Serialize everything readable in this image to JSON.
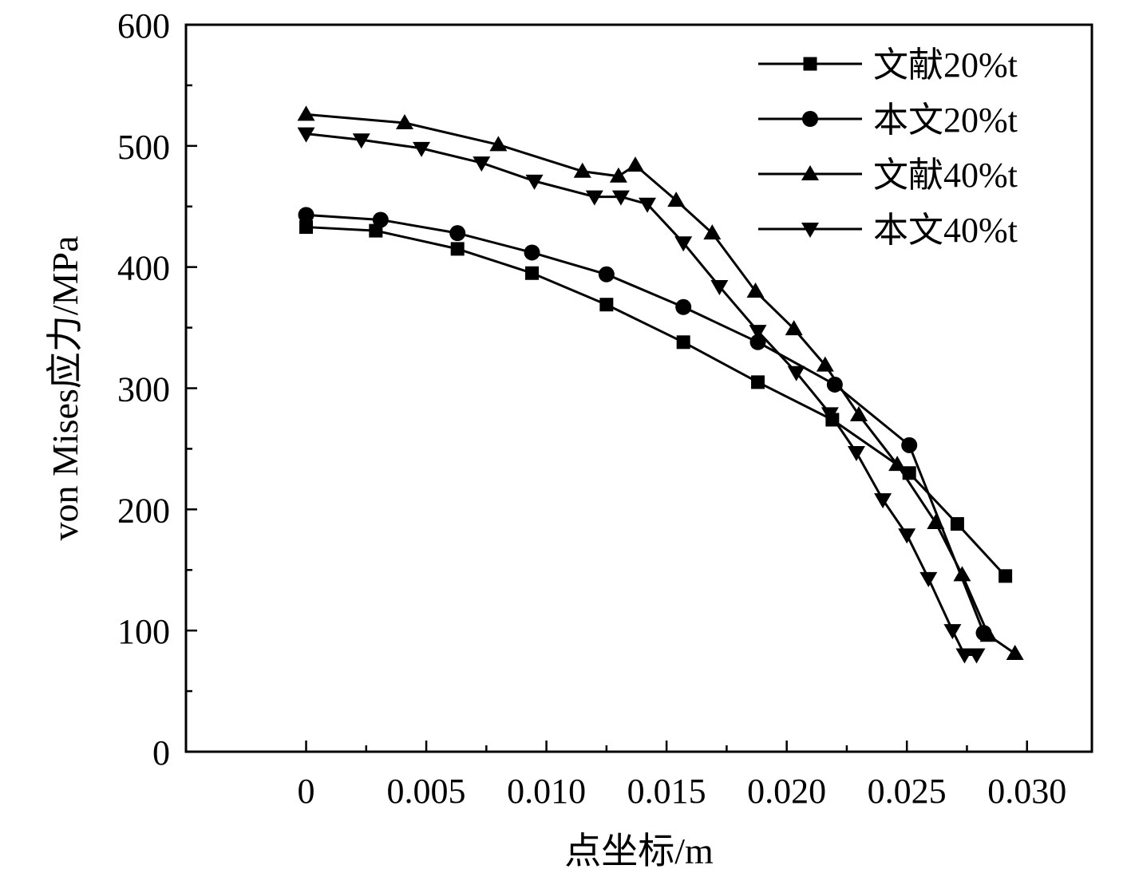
{
  "chart_data": {
    "type": "line",
    "xlabel": "点坐标/m",
    "ylabel": "von Mises应力/MPa",
    "xlim": [
      -0.005,
      0.0327
    ],
    "ylim": [
      0,
      600
    ],
    "x_ticks": [
      0,
      0.005,
      0.01,
      0.015,
      0.02,
      0.025,
      0.03
    ],
    "x_tick_labels": [
      "0",
      "0.005",
      "0.010",
      "0.015",
      "0.020",
      "0.025",
      "0.030"
    ],
    "y_ticks": [
      0,
      100,
      200,
      300,
      400,
      500,
      600
    ],
    "y_tick_labels": [
      "0",
      "100",
      "200",
      "300",
      "400",
      "500",
      "600"
    ],
    "grid": false,
    "legend_position": "top-right",
    "series": [
      {
        "name": "文献20%t",
        "marker": "square",
        "x": [
          0,
          0.0029,
          0.0063,
          0.0094,
          0.0125,
          0.0157,
          0.0188,
          0.0219,
          0.0251,
          0.0271,
          0.0291
        ],
        "y": [
          433,
          430,
          415,
          395,
          369,
          338,
          305,
          274,
          230,
          188,
          145
        ]
      },
      {
        "name": "本文20%t",
        "marker": "circle",
        "x": [
          0,
          0.0031,
          0.0063,
          0.0094,
          0.0125,
          0.0157,
          0.0188,
          0.022,
          0.0251,
          0.0282
        ],
        "y": [
          443,
          439,
          428,
          412,
          394,
          367,
          338,
          303,
          253,
          98
        ]
      },
      {
        "name": "文献40%t",
        "marker": "triangle-up",
        "x": [
          0,
          0.0041,
          0.008,
          0.0115,
          0.013,
          0.0137,
          0.0154,
          0.0169,
          0.0187,
          0.0203,
          0.0216,
          0.023,
          0.0246,
          0.0262,
          0.0273,
          0.0284,
          0.0295
        ],
        "y": [
          526,
          519,
          501,
          479,
          475,
          484,
          455,
          428,
          380,
          349,
          319,
          278,
          237,
          189,
          146,
          96,
          81
        ]
      },
      {
        "name": "本文40%t",
        "marker": "triangle-down",
        "x": [
          0,
          0.0023,
          0.0048,
          0.0073,
          0.0095,
          0.012,
          0.0131,
          0.0142,
          0.0157,
          0.0172,
          0.0188,
          0.0204,
          0.0218,
          0.0229,
          0.024,
          0.025,
          0.0259,
          0.0269,
          0.0274,
          0.0279
        ],
        "y": [
          510,
          505,
          498,
          486,
          471,
          458,
          458,
          452,
          420,
          384,
          347,
          313,
          279,
          247,
          208,
          179,
          143,
          100,
          80,
          80
        ]
      }
    ]
  }
}
